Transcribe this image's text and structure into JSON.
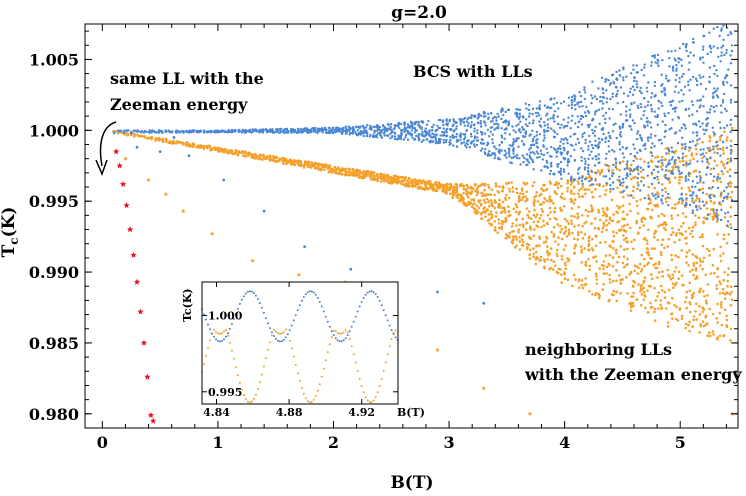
{
  "chart_data": {
    "type": "scatter",
    "title": "g=2.0",
    "xlabel": "B(T)",
    "ylabel": "T",
    "ylabel_sub": "c",
    "ylabel_unit": "(K)",
    "xlim": [
      -0.15,
      5.5
    ],
    "ylim": [
      0.979,
      1.0075
    ],
    "xticks": [
      0,
      1,
      2,
      3,
      4,
      5
    ],
    "yticks": [
      0.98,
      0.985,
      0.99,
      0.995,
      1.0,
      1.005
    ],
    "ytick_labels": [
      "0.980",
      "0.985",
      "0.990",
      "0.995",
      "1.000",
      "1.005"
    ],
    "grid": false,
    "colors": {
      "blue": "#4a86d4",
      "orange": "#f5a02a",
      "red": "#e8141e"
    },
    "annotations": {
      "bcs": "BCS with LLs",
      "same_ll_line1": "same LL with the",
      "same_ll_line2": "Zeeman energy",
      "neighbor_line1": "neighboring LLs",
      "neighbor_line2": "with the Zeeman energy"
    },
    "series": [
      {
        "color": "blue",
        "marker": "dot",
        "envelope_upper": [
          [
            0.1,
            1.0
          ],
          [
            1.0,
            1.0
          ],
          [
            2.0,
            1.0002
          ],
          [
            3.0,
            1.0008
          ],
          [
            4.0,
            1.0025
          ],
          [
            4.5,
            1.0045
          ],
          [
            5.0,
            1.006
          ],
          [
            5.45,
            1.008
          ]
        ],
        "envelope_lower": [
          [
            0.1,
            0.9998
          ],
          [
            1.0,
            0.99985
          ],
          [
            2.0,
            0.9998
          ],
          [
            3.0,
            0.999
          ],
          [
            4.0,
            0.9965
          ],
          [
            4.5,
            0.9955
          ],
          [
            5.0,
            0.9945
          ],
          [
            5.45,
            0.993
          ]
        ],
        "scattered_points": [
          [
            0.3,
            0.9988
          ],
          [
            0.5,
            0.9985
          ],
          [
            0.62,
            0.9995
          ],
          [
            0.75,
            0.9982
          ],
          [
            1.05,
            0.9965
          ],
          [
            1.4,
            0.9943
          ],
          [
            1.75,
            0.9918
          ],
          [
            2.15,
            0.9902
          ],
          [
            2.55,
            0.9892
          ],
          [
            2.9,
            0.9886
          ],
          [
            3.3,
            0.9878
          ]
        ]
      },
      {
        "color": "orange",
        "marker": "star",
        "envelope_upper": [
          [
            0.1,
            1.0
          ],
          [
            1.0,
            0.9988
          ],
          [
            2.0,
            0.9975
          ],
          [
            3.0,
            0.9962
          ],
          [
            4.0,
            0.9965
          ],
          [
            4.5,
            0.998
          ],
          [
            5.0,
            0.999
          ],
          [
            5.45,
            1.0002
          ]
        ],
        "envelope_lower": [
          [
            0.1,
            0.9998
          ],
          [
            1.0,
            0.9985
          ],
          [
            2.0,
            0.997
          ],
          [
            3.0,
            0.9955
          ],
          [
            4.0,
            0.989
          ],
          [
            4.5,
            0.9875
          ],
          [
            5.0,
            0.9858
          ],
          [
            5.45,
            0.985
          ]
        ],
        "scattered_points": [
          [
            0.2,
            0.998
          ],
          [
            0.4,
            0.9965
          ],
          [
            0.55,
            0.9955
          ],
          [
            0.7,
            0.9943
          ],
          [
            0.95,
            0.9927
          ],
          [
            1.3,
            0.9908
          ],
          [
            1.7,
            0.9898
          ],
          [
            2.1,
            0.9893
          ],
          [
            2.5,
            0.9866
          ],
          [
            2.9,
            0.9845
          ],
          [
            3.3,
            0.9818
          ],
          [
            3.7,
            0.98
          ],
          [
            5.45,
            0.98
          ]
        ]
      },
      {
        "color": "red",
        "marker": "star",
        "points": [
          [
            0.12,
            0.9985
          ],
          [
            0.15,
            0.9975
          ],
          [
            0.18,
            0.9962
          ],
          [
            0.21,
            0.9947
          ],
          [
            0.24,
            0.993
          ],
          [
            0.27,
            0.9912
          ],
          [
            0.3,
            0.9893
          ],
          [
            0.33,
            0.9872
          ],
          [
            0.36,
            0.985
          ],
          [
            0.39,
            0.9826
          ],
          [
            0.42,
            0.9799
          ],
          [
            0.44,
            0.9795
          ]
        ]
      }
    ],
    "inset": {
      "xlabel": "B(T)",
      "ylabel": "Tc(K)",
      "xlim": [
        4.832,
        4.94
      ],
      "ylim": [
        0.9942,
        1.0022
      ],
      "xtick_labels": [
        "4.84",
        "4.88",
        "4.92"
      ],
      "xticks": [
        4.84,
        4.88,
        4.92
      ],
      "ytick_labels": [
        "0.995",
        "1.000"
      ],
      "yticks": [
        0.995,
        1.0
      ],
      "blue_curve": {
        "center": 0.99995,
        "amplitude": 0.00165,
        "period": 0.0333,
        "phase_x": 4.8585
      },
      "orange_curve": {
        "center": 0.99695,
        "amplitude": 0.00265,
        "period": 0.0333,
        "phase_x": 4.875
      },
      "orange_clip_max": 0.9991
    }
  }
}
